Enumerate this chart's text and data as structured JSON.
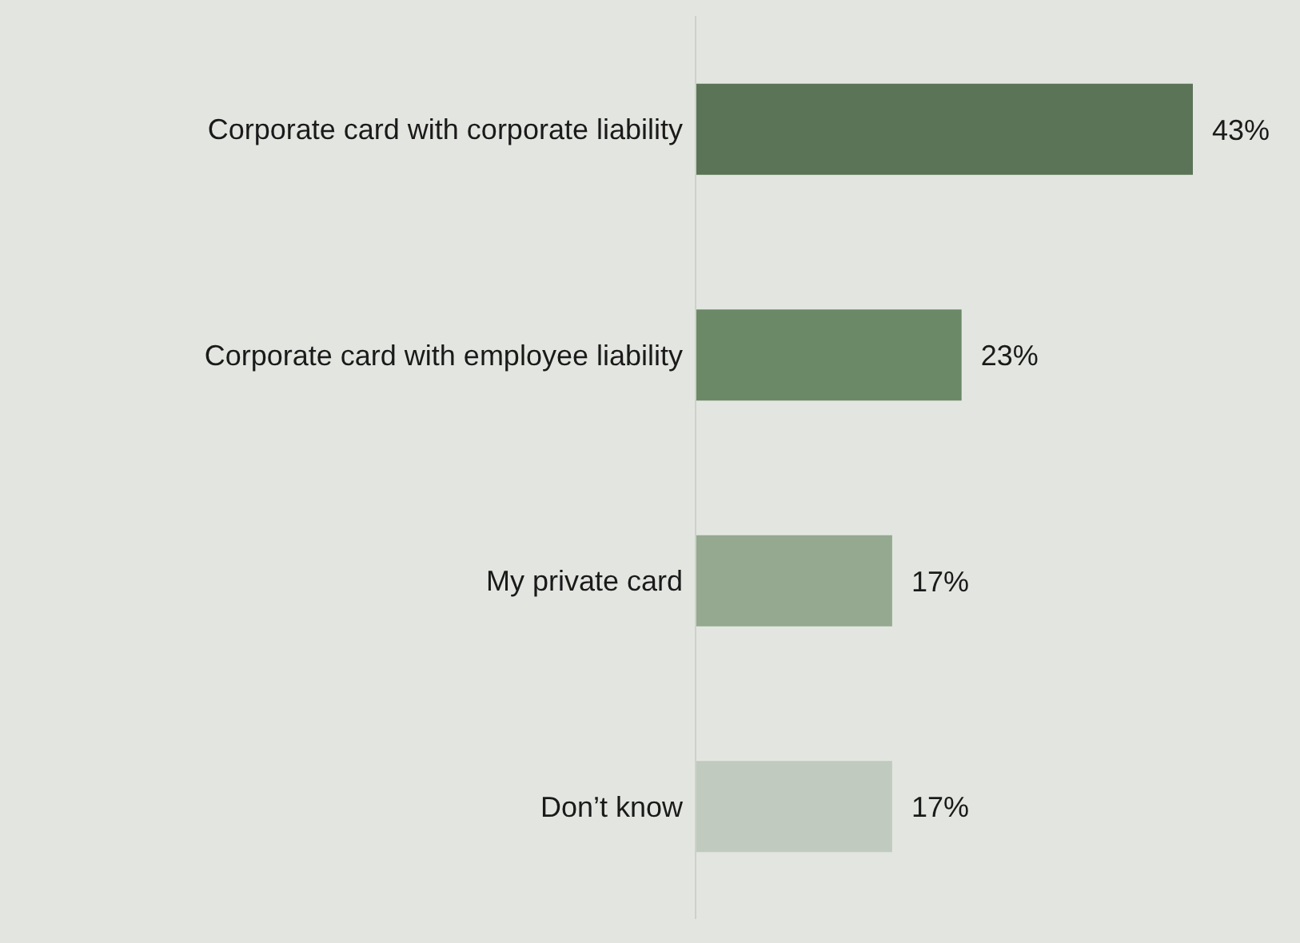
{
  "chart_data": {
    "type": "bar",
    "orientation": "horizontal",
    "categories": [
      "Corporate card with corporate liability",
      "Corporate card with employee liability",
      "My private card",
      "Don’t know"
    ],
    "values": [
      43,
      23,
      17,
      17
    ],
    "colors": [
      "#5b7356",
      "#6b8966",
      "#95a890",
      "#c0cabe"
    ],
    "value_labels": [
      "43%",
      "23%",
      "17%",
      "17%"
    ]
  }
}
